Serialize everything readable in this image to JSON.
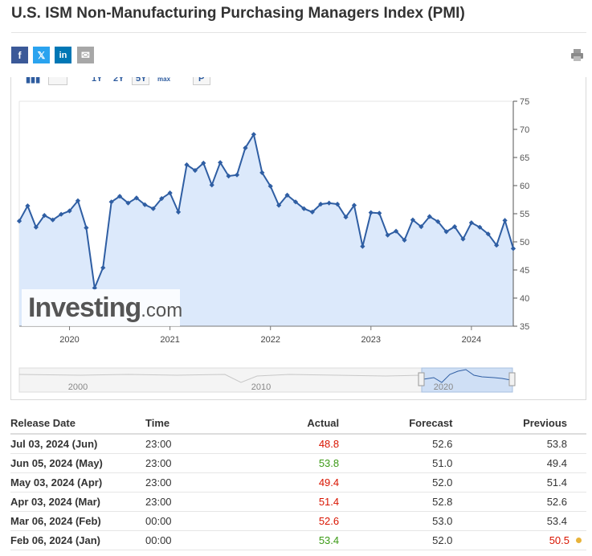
{
  "page": {
    "title": "U.S. ISM Non-Manufacturing Purchasing Managers Index (PMI)"
  },
  "share": {
    "facebook": "f",
    "twitter": "𝕏",
    "linkedin": "in",
    "email": "✉",
    "print_icon": "printer-icon"
  },
  "toolbar": {
    "ranges": [
      "1Y",
      "2Y",
      "5Y",
      "max"
    ],
    "p_label": "P"
  },
  "colors": {
    "line": "#2f5ea3",
    "fill": "#dce9fb",
    "red": "#d91400",
    "green": "#3c9a16"
  },
  "chart_data": {
    "type": "area",
    "title": "",
    "xlabel": "",
    "ylabel": "",
    "ylim": [
      35,
      75
    ],
    "y_ticks": [
      35,
      40,
      45,
      50,
      55,
      60,
      65,
      70,
      75
    ],
    "x_ticks": [
      "2020",
      "2021",
      "2022",
      "2023",
      "2024"
    ],
    "x_range": [
      "2019-07",
      "2024-06"
    ],
    "grid": false,
    "y_axis_position": "right",
    "series": [
      {
        "x": [
          "2019-07",
          "2019-08",
          "2019-09",
          "2019-10",
          "2019-11",
          "2019-12",
          "2020-01",
          "2020-02",
          "2020-03",
          "2020-04",
          "2020-05",
          "2020-06",
          "2020-07",
          "2020-08",
          "2020-09",
          "2020-10",
          "2020-11",
          "2020-12",
          "2021-01",
          "2021-02",
          "2021-03",
          "2021-04",
          "2021-05",
          "2021-06",
          "2021-07",
          "2021-08",
          "2021-09",
          "2021-10",
          "2021-11",
          "2021-12",
          "2022-01",
          "2022-02",
          "2022-03",
          "2022-04",
          "2022-05",
          "2022-06",
          "2022-07",
          "2022-08",
          "2022-09",
          "2022-10",
          "2022-11",
          "2022-12",
          "2023-01",
          "2023-02",
          "2023-03",
          "2023-04",
          "2023-05",
          "2023-06",
          "2023-07",
          "2023-08",
          "2023-09",
          "2023-10",
          "2023-11",
          "2023-12",
          "2024-01",
          "2024-02",
          "2024-03",
          "2024-04",
          "2024-05",
          "2024-06"
        ],
        "values": [
          53.7,
          56.4,
          52.6,
          54.7,
          53.9,
          54.9,
          55.5,
          57.3,
          52.5,
          41.8,
          45.4,
          57.1,
          58.1,
          56.9,
          57.8,
          56.6,
          55.9,
          57.7,
          58.7,
          55.3,
          63.7,
          62.7,
          64.0,
          60.1,
          64.1,
          61.7,
          61.9,
          66.7,
          69.1,
          62.3,
          59.9,
          56.5,
          58.3,
          57.1,
          55.9,
          55.3,
          56.7,
          56.9,
          56.7,
          54.4,
          56.5,
          49.2,
          55.2,
          55.1,
          51.2,
          51.9,
          50.3,
          53.9,
          52.7,
          54.5,
          53.6,
          51.8,
          52.7,
          50.5,
          53.4,
          52.6,
          51.4,
          49.4,
          53.8,
          48.8
        ]
      }
    ],
    "navigator": {
      "x_ticks": [
        "2000",
        "2010",
        "2020"
      ]
    },
    "watermark": {
      "main": "Investing",
      "suffix": ".com"
    }
  },
  "table": {
    "headers": [
      "Release Date",
      "Time",
      "Actual",
      "Forecast",
      "Previous"
    ],
    "rows": [
      {
        "date": "Jul 03, 2024 (Jun)",
        "time": "23:00",
        "actual": "48.8",
        "actual_status": "red",
        "forecast": "52.6",
        "previous": "53.8",
        "previous_status": "",
        "previous_revised": false
      },
      {
        "date": "Jun 05, 2024 (May)",
        "time": "23:00",
        "actual": "53.8",
        "actual_status": "green",
        "forecast": "51.0",
        "previous": "49.4",
        "previous_status": "",
        "previous_revised": false
      },
      {
        "date": "May 03, 2024 (Apr)",
        "time": "23:00",
        "actual": "49.4",
        "actual_status": "red",
        "forecast": "52.0",
        "previous": "51.4",
        "previous_status": "",
        "previous_revised": false
      },
      {
        "date": "Apr 03, 2024 (Mar)",
        "time": "23:00",
        "actual": "51.4",
        "actual_status": "red",
        "forecast": "52.8",
        "previous": "52.6",
        "previous_status": "",
        "previous_revised": false
      },
      {
        "date": "Mar 06, 2024 (Feb)",
        "time": "00:00",
        "actual": "52.6",
        "actual_status": "red",
        "forecast": "53.0",
        "previous": "53.4",
        "previous_status": "",
        "previous_revised": false
      },
      {
        "date": "Feb 06, 2024 (Jan)",
        "time": "00:00",
        "actual": "53.4",
        "actual_status": "green",
        "forecast": "52.0",
        "previous": "50.5",
        "previous_status": "red",
        "previous_revised": true
      }
    ]
  }
}
